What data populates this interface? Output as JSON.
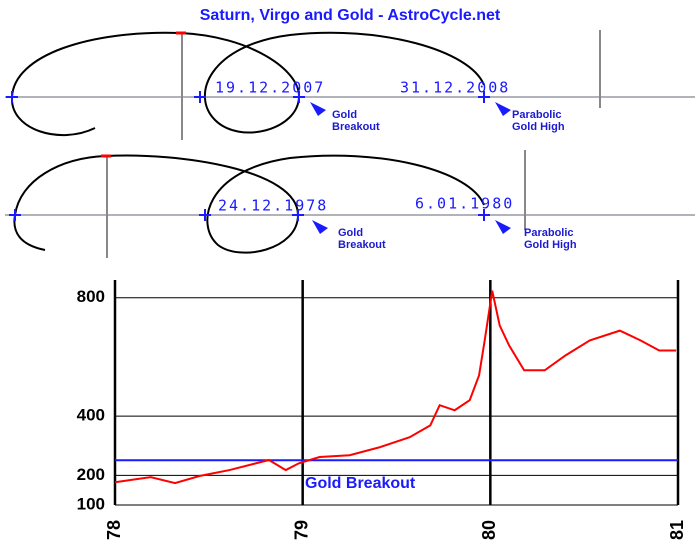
{
  "title": "Saturn, Virgo and Gold - AstroCycle.net",
  "diagrams": [
    {
      "dates": [
        "19.12.2007",
        "31.12.2008"
      ],
      "breakout_label": [
        "Gold",
        "Breakout"
      ],
      "high_label": [
        "Parabolic",
        "Gold High"
      ]
    },
    {
      "dates": [
        "24.12.1978",
        "6.01.1980"
      ],
      "breakout_label": [
        "Gold",
        "Breakout"
      ],
      "high_label": [
        "Parabolic",
        "Gold High"
      ]
    }
  ],
  "chart_data": {
    "type": "line",
    "annotation": "Gold Breakout",
    "breakout_level": 251,
    "breakout_color": "#1a1aff",
    "xlim": [
      78,
      81
    ],
    "xticks": [
      78,
      79,
      80,
      81
    ],
    "ylim": [
      100,
      860
    ],
    "yticks": [
      100,
      200,
      400,
      800
    ],
    "grid": true,
    "series": [
      {
        "name": null,
        "color": "#ff0000",
        "x": [
          78.0,
          78.19,
          78.32,
          78.45,
          78.61,
          78.82,
          78.91,
          78.98,
          79.09,
          79.25,
          79.41,
          79.57,
          79.68,
          79.73,
          79.81,
          79.89,
          79.94,
          79.97,
          80.01,
          80.05,
          80.1,
          80.18,
          80.29,
          80.4,
          80.53,
          80.69,
          80.8,
          80.9,
          80.99
        ],
        "values": [
          177,
          194,
          174,
          198,
          218,
          252,
          218,
          241,
          262,
          268,
          295,
          329,
          369,
          437,
          420,
          454,
          538,
          656,
          824,
          706,
          639,
          555,
          555,
          605,
          656,
          689,
          656,
          622,
          622
        ]
      }
    ]
  }
}
